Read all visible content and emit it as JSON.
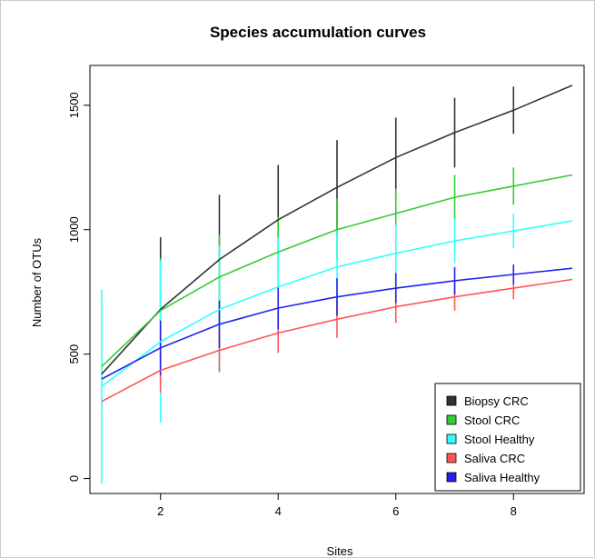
{
  "chart_data": {
    "type": "line",
    "title": "Species accumulation curves",
    "xlabel": "Sites",
    "ylabel": "Number of OTUs",
    "xlim": [
      0.8,
      9.2
    ],
    "ylim": [
      -60,
      1660
    ],
    "xticks": [
      2,
      4,
      6,
      8
    ],
    "yticks": [
      0,
      500,
      1000,
      1500
    ],
    "grid": false,
    "legend_position": "bottom-right",
    "x": [
      1,
      2,
      3,
      4,
      5,
      6,
      7,
      8,
      9
    ],
    "series": [
      {
        "name": "Biopsy CRC",
        "color": "#333333",
        "values": [
          420,
          680,
          880,
          1040,
          1170,
          1290,
          1390,
          1480,
          1580
        ],
        "err": [
          0,
          290,
          260,
          220,
          190,
          160,
          140,
          95,
          0
        ]
      },
      {
        "name": "Stool CRC",
        "color": "#33cc33",
        "values": [
          450,
          675,
          810,
          910,
          1000,
          1065,
          1130,
          1175,
          1220
        ],
        "err": [
          0,
          210,
          170,
          140,
          125,
          100,
          90,
          75,
          0
        ]
      },
      {
        "name": "Stool Healthy",
        "color": "#33ffff",
        "values": [
          370,
          550,
          680,
          770,
          850,
          905,
          955,
          995,
          1035
        ],
        "err": [
          390,
          325,
          255,
          200,
          150,
          115,
          90,
          70,
          0
        ]
      },
      {
        "name": "Saliva CRC",
        "color": "#ff5555",
        "values": [
          310,
          435,
          515,
          585,
          640,
          690,
          730,
          765,
          800
        ],
        "err": [
          0,
          90,
          85,
          80,
          75,
          65,
          55,
          45,
          0
        ]
      },
      {
        "name": "Saliva Healthy",
        "color": "#2222ee",
        "values": [
          400,
          525,
          620,
          685,
          730,
          765,
          795,
          820,
          845
        ],
        "err": [
          0,
          110,
          95,
          85,
          75,
          60,
          55,
          40,
          0
        ]
      }
    ]
  }
}
